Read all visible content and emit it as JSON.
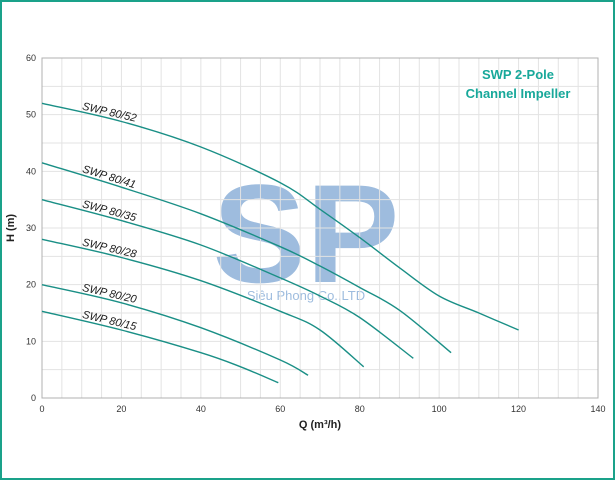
{
  "chart_data": {
    "type": "line",
    "title": "SWP 2-Pole",
    "subtitle": "Channel Impeller",
    "xlabel": "Q (m³/h)",
    "ylabel": "H (m)",
    "xlim": [
      0,
      140
    ],
    "ylim": [
      0,
      60
    ],
    "xticks": [
      "0",
      "20",
      "40",
      "60",
      "80",
      "100",
      "120",
      "140"
    ],
    "yticks": [
      "0",
      "10",
      "20",
      "30",
      "40",
      "50",
      "60"
    ],
    "grid": true,
    "series": [
      {
        "name": "SWP 80/52",
        "x": [
          0,
          20,
          40,
          60,
          70,
          80,
          90,
          100,
          110,
          120
        ],
        "y": [
          52,
          48.8,
          44.3,
          38,
          33.3,
          28.3,
          23,
          18,
          15,
          12
        ]
      },
      {
        "name": "SWP 80/41",
        "x": [
          0,
          20,
          40,
          60,
          70,
          80,
          90,
          103
        ],
        "y": [
          41.5,
          37.2,
          32.5,
          26.7,
          23.3,
          19.5,
          15.5,
          8
        ]
      },
      {
        "name": "SWP 80/35",
        "x": [
          0,
          20,
          40,
          60,
          70,
          80,
          93.5
        ],
        "y": [
          35,
          31.3,
          27,
          21.2,
          18,
          14.2,
          7
        ]
      },
      {
        "name": "SWP 80/28",
        "x": [
          0,
          20,
          40,
          60,
          70,
          81
        ],
        "y": [
          28,
          24.8,
          20.7,
          15.3,
          12,
          5.5
        ]
      },
      {
        "name": "SWP 80/20",
        "x": [
          0,
          20,
          40,
          60,
          67
        ],
        "y": [
          20,
          16.8,
          12.4,
          6.7,
          4
        ]
      },
      {
        "name": "SWP 80/15",
        "x": [
          0,
          20,
          40,
          50,
          59.5
        ],
        "y": [
          15.3,
          12,
          8,
          5.5,
          2.7
        ]
      }
    ]
  },
  "watermark": {
    "letters": "SP",
    "company": "Siêu Phong Co.,LTD"
  },
  "colors": {
    "frame": "#1aa28a",
    "curve": "#1a8f86",
    "title": "#17a89a",
    "grid": "#e3e3e3",
    "watermark": "#4f86c4"
  }
}
